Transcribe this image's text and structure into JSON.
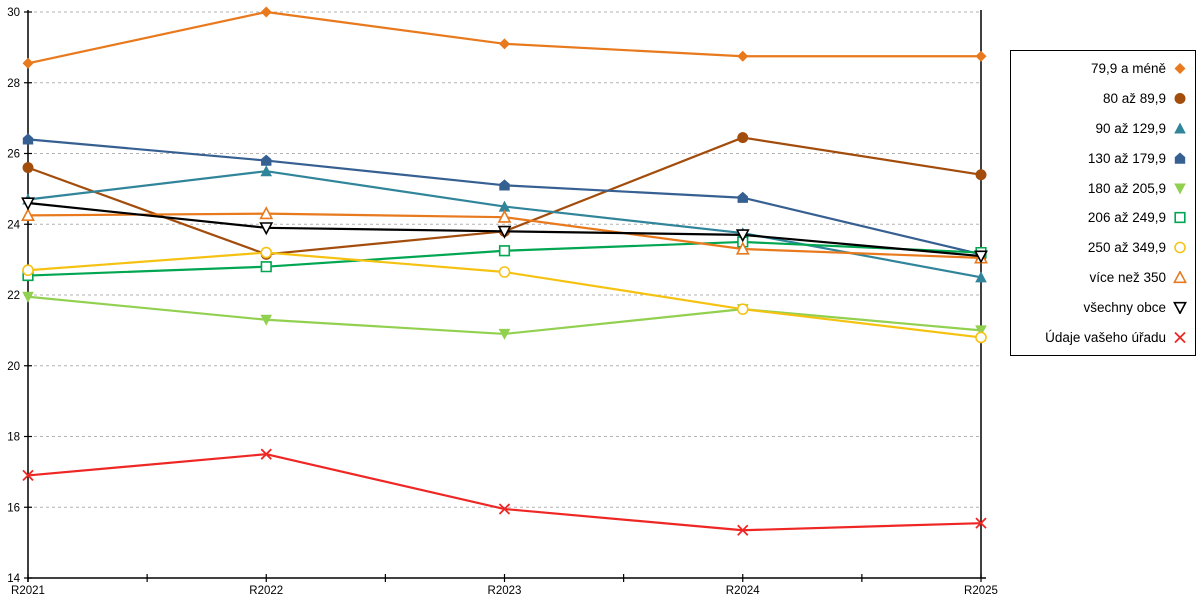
{
  "chart_data": {
    "type": "line",
    "title": "",
    "xlabel": "",
    "ylabel": "",
    "categories": [
      "R2021",
      "R2022",
      "R2023",
      "R2024",
      "R2025"
    ],
    "ylim": [
      14,
      30
    ],
    "y_ticks": [
      14,
      16,
      18,
      20,
      22,
      24,
      26,
      28,
      30
    ],
    "grid": "horizontal-dashed",
    "legend_position": "right",
    "colors": {
      "axis": "#000000",
      "gridline": "#b3b3b3",
      "background": "#ffffff"
    },
    "series": [
      {
        "name": "79,9 a méně",
        "marker": "diamond-filled",
        "color": "#E8791D",
        "values": [
          28.55,
          30.0,
          29.1,
          28.75,
          28.75
        ]
      },
      {
        "name": "80 až 89,9",
        "marker": "circle-filled",
        "color": "#A34D0D",
        "values": [
          25.6,
          23.15,
          23.8,
          26.45,
          25.4
        ]
      },
      {
        "name": "90 až 129,9",
        "marker": "triangle-up-filled",
        "color": "#31859B",
        "values": [
          24.7,
          25.5,
          24.5,
          23.75,
          22.5
        ]
      },
      {
        "name": "130 až 179,9",
        "marker": "pentagon-filled",
        "color": "#376092",
        "values": [
          26.4,
          25.8,
          25.1,
          24.75,
          23.15
        ]
      },
      {
        "name": "180 až 205,9",
        "marker": "triangle-down-filled",
        "color": "#92D050",
        "values": [
          21.95,
          21.3,
          20.9,
          21.6,
          21.0
        ]
      },
      {
        "name": "206 až 249,9",
        "marker": "square-open",
        "color": "#00A651",
        "values": [
          22.55,
          22.8,
          23.25,
          23.5,
          23.2
        ]
      },
      {
        "name": "250 až 349,9",
        "marker": "circle-open",
        "color": "#F5C211",
        "values": [
          22.7,
          23.2,
          22.65,
          21.6,
          20.8
        ]
      },
      {
        "name": "více než 350",
        "marker": "triangle-up-open",
        "color": "#E8791D",
        "values": [
          24.25,
          24.3,
          24.2,
          23.3,
          23.05
        ]
      },
      {
        "name": "všechny obce",
        "marker": "triangle-down-open",
        "color": "#000000",
        "values": [
          24.6,
          23.9,
          23.8,
          23.7,
          23.1
        ]
      },
      {
        "name": "Údaje vašeho úřadu",
        "marker": "x-cross",
        "color": "#EE2724",
        "values": [
          16.9,
          17.5,
          15.95,
          15.35,
          15.55
        ]
      }
    ]
  }
}
